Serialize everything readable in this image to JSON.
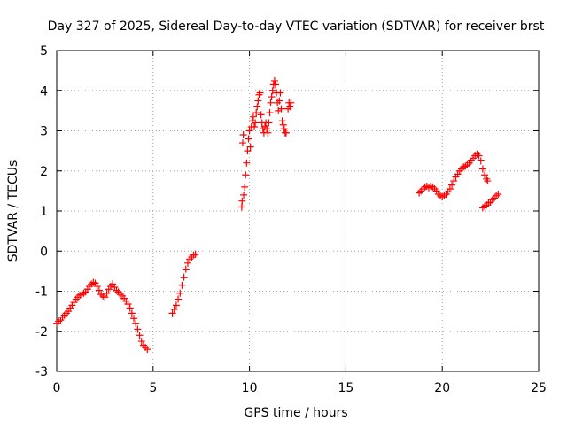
{
  "chart_data": {
    "type": "scatter",
    "title": "Day 327 of 2025, Sidereal Day-to-day VTEC variation (SDTVAR) for receiver brst",
    "xlabel": "GPS time / hours",
    "ylabel": "SDTVAR / TECUs",
    "xlim": [
      0,
      25
    ],
    "ylim": [
      -3,
      5
    ],
    "x_ticks": [
      0,
      5,
      10,
      15,
      20,
      25
    ],
    "y_ticks": [
      -3,
      -2,
      -1,
      0,
      1,
      2,
      3,
      4,
      5
    ],
    "x_tick_labels": [
      "0",
      "5",
      "10",
      "15",
      "20",
      "25"
    ],
    "y_tick_labels": [
      "-3",
      "-2",
      "-1",
      "0",
      "1",
      "2",
      "3",
      "4",
      "5"
    ],
    "grid": true,
    "marker": "plus",
    "color": "#ff0000",
    "series": [
      {
        "segment": "00-04.7h",
        "points": [
          [
            0.0,
            -1.8
          ],
          [
            0.1,
            -1.75
          ],
          [
            0.2,
            -1.72
          ],
          [
            0.3,
            -1.65
          ],
          [
            0.4,
            -1.6
          ],
          [
            0.5,
            -1.55
          ],
          [
            0.6,
            -1.5
          ],
          [
            0.7,
            -1.42
          ],
          [
            0.8,
            -1.35
          ],
          [
            0.9,
            -1.28
          ],
          [
            1.0,
            -1.2
          ],
          [
            1.1,
            -1.15
          ],
          [
            1.2,
            -1.1
          ],
          [
            1.3,
            -1.08
          ],
          [
            1.4,
            -1.05
          ],
          [
            1.5,
            -1.02
          ],
          [
            1.6,
            -0.95
          ],
          [
            1.7,
            -0.88
          ],
          [
            1.8,
            -0.82
          ],
          [
            1.9,
            -0.78
          ],
          [
            2.0,
            -0.8
          ],
          [
            2.1,
            -0.88
          ],
          [
            2.2,
            -0.98
          ],
          [
            2.3,
            -1.08
          ],
          [
            2.4,
            -1.12
          ],
          [
            2.5,
            -1.15
          ],
          [
            2.6,
            -1.05
          ],
          [
            2.7,
            -0.95
          ],
          [
            2.8,
            -0.88
          ],
          [
            2.9,
            -0.82
          ],
          [
            3.0,
            -0.9
          ],
          [
            3.1,
            -0.98
          ],
          [
            3.2,
            -1.02
          ],
          [
            3.3,
            -1.08
          ],
          [
            3.4,
            -1.12
          ],
          [
            3.5,
            -1.18
          ],
          [
            3.6,
            -1.25
          ],
          [
            3.7,
            -1.32
          ],
          [
            3.8,
            -1.42
          ],
          [
            3.9,
            -1.55
          ],
          [
            4.0,
            -1.68
          ],
          [
            4.1,
            -1.8
          ],
          [
            4.2,
            -1.95
          ],
          [
            4.3,
            -2.1
          ],
          [
            4.4,
            -2.25
          ],
          [
            4.5,
            -2.35
          ],
          [
            4.6,
            -2.4
          ],
          [
            4.7,
            -2.45
          ]
        ]
      },
      {
        "segment": "06-07.2h",
        "points": [
          [
            6.0,
            -1.55
          ],
          [
            6.1,
            -1.45
          ],
          [
            6.2,
            -1.35
          ],
          [
            6.3,
            -1.2
          ],
          [
            6.4,
            -1.05
          ],
          [
            6.5,
            -0.85
          ],
          [
            6.6,
            -0.65
          ],
          [
            6.7,
            -0.45
          ],
          [
            6.8,
            -0.3
          ],
          [
            6.9,
            -0.2
          ],
          [
            7.0,
            -0.15
          ],
          [
            7.1,
            -0.1
          ],
          [
            7.2,
            -0.08
          ]
        ]
      },
      {
        "segment": "09.6-12.2h",
        "points": [
          [
            9.6,
            1.1
          ],
          [
            9.62,
            1.25
          ],
          [
            9.65,
            2.7
          ],
          [
            9.68,
            2.9
          ],
          [
            9.7,
            1.4
          ],
          [
            9.75,
            1.6
          ],
          [
            9.8,
            1.9
          ],
          [
            9.85,
            2.2
          ],
          [
            9.9,
            2.5
          ],
          [
            9.95,
            2.8
          ],
          [
            10.0,
            3.0
          ],
          [
            10.05,
            2.6
          ],
          [
            10.1,
            3.1
          ],
          [
            10.15,
            3.25
          ],
          [
            10.2,
            3.35
          ],
          [
            10.25,
            3.1
          ],
          [
            10.3,
            3.2
          ],
          [
            10.35,
            3.45
          ],
          [
            10.4,
            3.6
          ],
          [
            10.45,
            3.75
          ],
          [
            10.5,
            3.9
          ],
          [
            10.55,
            3.95
          ],
          [
            10.6,
            3.4
          ],
          [
            10.65,
            3.2
          ],
          [
            10.7,
            3.05
          ],
          [
            10.75,
            2.95
          ],
          [
            10.8,
            3.1
          ],
          [
            10.85,
            3.2
          ],
          [
            10.9,
            3.05
          ],
          [
            10.95,
            2.95
          ],
          [
            11.0,
            3.2
          ],
          [
            11.05,
            3.45
          ],
          [
            11.1,
            3.7
          ],
          [
            11.15,
            3.85
          ],
          [
            11.2,
            4.0
          ],
          [
            11.25,
            4.15
          ],
          [
            11.3,
            4.25
          ],
          [
            11.35,
            4.15
          ],
          [
            11.4,
            3.95
          ],
          [
            11.45,
            3.7
          ],
          [
            11.5,
            3.5
          ],
          [
            11.55,
            3.75
          ],
          [
            11.6,
            3.95
          ],
          [
            11.65,
            3.55
          ],
          [
            11.7,
            3.25
          ],
          [
            11.75,
            3.15
          ],
          [
            11.8,
            3.05
          ],
          [
            11.85,
            2.95
          ],
          [
            11.9,
            2.95
          ],
          [
            12.0,
            3.55
          ],
          [
            12.05,
            3.7
          ],
          [
            12.1,
            3.6
          ],
          [
            12.15,
            3.7
          ]
        ]
      },
      {
        "segment": "18.8-23h",
        "points": [
          [
            18.8,
            1.45
          ],
          [
            18.9,
            1.5
          ],
          [
            19.0,
            1.55
          ],
          [
            19.1,
            1.6
          ],
          [
            19.2,
            1.62
          ],
          [
            19.3,
            1.58
          ],
          [
            19.4,
            1.62
          ],
          [
            19.5,
            1.6
          ],
          [
            19.6,
            1.55
          ],
          [
            19.7,
            1.5
          ],
          [
            19.8,
            1.42
          ],
          [
            19.9,
            1.38
          ],
          [
            20.0,
            1.35
          ],
          [
            20.1,
            1.38
          ],
          [
            20.2,
            1.42
          ],
          [
            20.3,
            1.48
          ],
          [
            20.4,
            1.55
          ],
          [
            20.5,
            1.65
          ],
          [
            20.6,
            1.75
          ],
          [
            20.7,
            1.85
          ],
          [
            20.8,
            1.92
          ],
          [
            20.9,
            2.0
          ],
          [
            21.0,
            2.05
          ],
          [
            21.1,
            2.1
          ],
          [
            21.2,
            2.12
          ],
          [
            21.3,
            2.15
          ],
          [
            21.4,
            2.2
          ],
          [
            21.5,
            2.25
          ],
          [
            21.6,
            2.32
          ],
          [
            21.7,
            2.38
          ],
          [
            21.8,
            2.42
          ],
          [
            21.9,
            2.38
          ],
          [
            22.0,
            2.25
          ],
          [
            22.1,
            2.05
          ],
          [
            22.2,
            1.9
          ],
          [
            22.3,
            1.8
          ],
          [
            22.35,
            1.75
          ],
          [
            22.1,
            1.08
          ],
          [
            22.2,
            1.12
          ],
          [
            22.3,
            1.15
          ],
          [
            22.4,
            1.2
          ],
          [
            22.5,
            1.22
          ],
          [
            22.6,
            1.28
          ],
          [
            22.7,
            1.32
          ],
          [
            22.8,
            1.38
          ],
          [
            22.9,
            1.42
          ]
        ]
      }
    ]
  }
}
